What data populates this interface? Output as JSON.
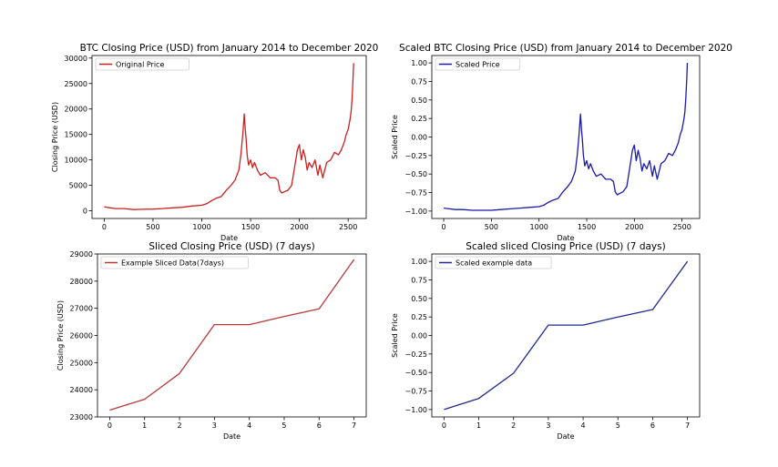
{
  "chart_data": [
    {
      "type": "line",
      "title": "BTC Closing Price (USD) from January 2014 to December 2020",
      "xlabel": "Date",
      "ylabel": "Closing Price (USD)",
      "xlim": [
        -125,
        2685
      ],
      "ylim": [
        -1500,
        30500
      ],
      "xticks": [
        0,
        500,
        1000,
        1500,
        2000,
        2500
      ],
      "yticks": [
        0,
        5000,
        10000,
        15000,
        20000,
        25000,
        30000
      ],
      "ytick_labels": [
        "0",
        "5000",
        "10000",
        "15000",
        "20000",
        "25000",
        "30000"
      ],
      "legend": "top-left",
      "grid": false,
      "series": [
        {
          "name": "Original Price",
          "color": "#cc1f1f",
          "x": [
            0,
            60,
            120,
            200,
            300,
            400,
            500,
            600,
            700,
            800,
            900,
            1000,
            1050,
            1100,
            1150,
            1200,
            1250,
            1300,
            1340,
            1380,
            1400,
            1420,
            1435,
            1445,
            1455,
            1465,
            1480,
            1500,
            1520,
            1540,
            1570,
            1600,
            1650,
            1700,
            1750,
            1780,
            1800,
            1820,
            1850,
            1880,
            1920,
            1950,
            1980,
            2000,
            2020,
            2040,
            2060,
            2080,
            2100,
            2130,
            2160,
            2190,
            2210,
            2240,
            2280,
            2320,
            2360,
            2400,
            2430,
            2460,
            2480,
            2500,
            2520,
            2530,
            2540,
            2550,
            2556
          ],
          "values": [
            800,
            600,
            450,
            450,
            250,
            300,
            350,
            450,
            600,
            700,
            950,
            1100,
            1400,
            2000,
            2500,
            2800,
            4000,
            5000,
            6000,
            8000,
            11000,
            15000,
            19000,
            16000,
            14000,
            11000,
            9000,
            10000,
            8500,
            9500,
            8000,
            7000,
            7500,
            6500,
            6500,
            6000,
            4000,
            3500,
            3800,
            4000,
            5000,
            8500,
            12000,
            13000,
            10000,
            12000,
            10500,
            8000,
            9500,
            8500,
            10000,
            7000,
            9000,
            6500,
            9500,
            10000,
            11500,
            11000,
            12000,
            13500,
            15000,
            16000,
            18000,
            19500,
            22000,
            26000,
            29000
          ]
        }
      ]
    },
    {
      "type": "line",
      "title": "Scaled BTC Closing Price (USD) from January 2014 to December 2020",
      "xlabel": "Date",
      "ylabel": "Scaled Price",
      "xlim": [
        -125,
        2685
      ],
      "ylim": [
        -1.1,
        1.1
      ],
      "xticks": [
        0,
        500,
        1000,
        1500,
        2000,
        2500
      ],
      "yticks": [
        -1.0,
        -0.75,
        -0.5,
        -0.25,
        0.0,
        0.25,
        0.5,
        0.75,
        1.0
      ],
      "ytick_labels": [
        "−1.00",
        "−0.75",
        "−0.50",
        "−0.25",
        "0.00",
        "0.25",
        "0.50",
        "0.75",
        "1.00"
      ],
      "legend": "top-left",
      "grid": false,
      "series": [
        {
          "name": "Scaled Price",
          "color": "#1a1aaa",
          "x": [
            0,
            60,
            120,
            200,
            300,
            400,
            500,
            600,
            700,
            800,
            900,
            1000,
            1050,
            1100,
            1150,
            1200,
            1250,
            1300,
            1340,
            1380,
            1400,
            1420,
            1435,
            1445,
            1455,
            1465,
            1480,
            1500,
            1520,
            1540,
            1570,
            1600,
            1650,
            1700,
            1750,
            1780,
            1800,
            1820,
            1850,
            1880,
            1920,
            1950,
            1980,
            2000,
            2020,
            2040,
            2060,
            2080,
            2100,
            2130,
            2160,
            2190,
            2210,
            2240,
            2280,
            2320,
            2360,
            2400,
            2430,
            2460,
            2480,
            2500,
            2520,
            2530,
            2540,
            2550,
            2556
          ],
          "values": [
            -0.96,
            -0.97,
            -0.98,
            -0.98,
            -0.99,
            -0.99,
            -0.99,
            -0.98,
            -0.97,
            -0.96,
            -0.95,
            -0.94,
            -0.92,
            -0.88,
            -0.85,
            -0.83,
            -0.74,
            -0.67,
            -0.6,
            -0.46,
            -0.25,
            0.03,
            0.31,
            0.1,
            -0.04,
            -0.25,
            -0.39,
            -0.32,
            -0.43,
            -0.36,
            -0.46,
            -0.53,
            -0.5,
            -0.57,
            -0.57,
            -0.6,
            -0.74,
            -0.78,
            -0.76,
            -0.74,
            -0.67,
            -0.43,
            -0.18,
            -0.11,
            -0.32,
            -0.18,
            -0.29,
            -0.46,
            -0.36,
            -0.43,
            -0.32,
            -0.53,
            -0.39,
            -0.57,
            -0.36,
            -0.32,
            -0.22,
            -0.25,
            -0.18,
            -0.08,
            0.03,
            0.1,
            0.24,
            0.34,
            0.52,
            0.8,
            1.0
          ]
        }
      ]
    },
    {
      "type": "line",
      "title": "Sliced Closing Price (USD) (7 days)",
      "xlabel": "Date",
      "ylabel": "Closing Price (USD)",
      "xlim": [
        -0.35,
        7.35
      ],
      "ylim": [
        23000,
        29000
      ],
      "xticks": [
        0,
        1,
        2,
        3,
        4,
        5,
        6,
        7
      ],
      "yticks": [
        23000,
        24000,
        25000,
        26000,
        27000,
        28000,
        29000
      ],
      "ytick_labels": [
        "23000",
        "24000",
        "25000",
        "26000",
        "27000",
        "28000",
        "29000"
      ],
      "legend": "top-left",
      "grid": false,
      "series": [
        {
          "name": "Example Sliced Data(7days)",
          "color": "#b83a3a",
          "x": [
            0,
            1,
            2,
            3,
            4,
            5,
            6,
            7
          ],
          "values": [
            23250,
            23650,
            24600,
            26400,
            26400,
            26700,
            26980,
            28800
          ]
        }
      ]
    },
    {
      "type": "line",
      "title": "Scaled sliced Closing Price (USD) (7 days)",
      "xlabel": "Date",
      "ylabel": "Scaled Price",
      "xlim": [
        -0.35,
        7.35
      ],
      "ylim": [
        -1.1,
        1.1
      ],
      "xticks": [
        0,
        1,
        2,
        3,
        4,
        5,
        6,
        7
      ],
      "yticks": [
        -1.0,
        -0.75,
        -0.5,
        -0.25,
        0.0,
        0.25,
        0.5,
        0.75,
        1.0
      ],
      "ytick_labels": [
        "−1.00",
        "−0.75",
        "−0.50",
        "−0.25",
        "0.00",
        "0.25",
        "0.50",
        "0.75",
        "1.00"
      ],
      "legend": "top-left",
      "grid": false,
      "series": [
        {
          "name": "Scaled example data",
          "color": "#1f2a8a",
          "x": [
            0,
            1,
            2,
            3,
            4,
            5,
            6,
            7
          ],
          "values": [
            -1.0,
            -0.85,
            -0.51,
            0.14,
            0.14,
            0.25,
            0.35,
            1.0
          ]
        }
      ]
    }
  ]
}
